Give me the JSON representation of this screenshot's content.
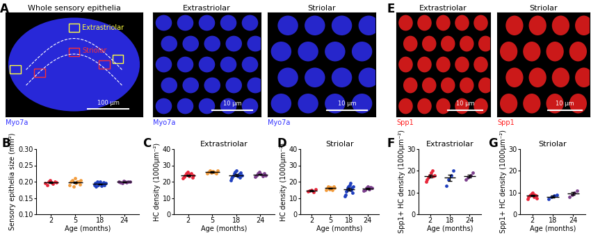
{
  "figures": [
    {
      "panel": "A",
      "images": [
        {
          "kind": "whole",
          "title": "Whole sensory epithelia",
          "stain": "Myo7a",
          "color": "#3030ff",
          "scale_bar": "100 µm",
          "regions": [
            {
              "label": "Extrastriolar",
              "color": "#ffff40"
            },
            {
              "label": "Striolar",
              "color": "#ff3030"
            }
          ]
        },
        {
          "kind": "cells",
          "title": "Extrastriolar",
          "stain": "Myo7a",
          "color": "#3030ff",
          "scale_bar": "10 µm"
        },
        {
          "kind": "cells",
          "title": "Striolar",
          "stain": "Myo7a",
          "color": "#3030ff",
          "scale_bar": "10 µm"
        }
      ]
    },
    {
      "panel": "E",
      "images": [
        {
          "kind": "cells",
          "title": "Extrastriolar",
          "stain": "Spp1",
          "color": "#ff2020",
          "scale_bar": "10 µm"
        },
        {
          "kind": "cells",
          "title": "Striolar",
          "stain": "Spp1",
          "color": "#ff2020",
          "scale_bar": "10 µm"
        }
      ]
    }
  ],
  "chart_data": [
    {
      "panel": "B",
      "type": "scatter",
      "xlabel": "Age (months)",
      "ylabel": "Sensory epithelia size (mm²)",
      "categories": [
        "2",
        "5",
        "18",
        "24"
      ],
      "colors": [
        "#e8263a",
        "#f39c3c",
        "#1f3fbf",
        "#7b3f8c"
      ],
      "values": [
        [
          0.195,
          0.19,
          0.2,
          0.205,
          0.198,
          0.193,
          0.2,
          0.197
        ],
        [
          0.19,
          0.2,
          0.205,
          0.185,
          0.21,
          0.195,
          0.2,
          0.2,
          0.192,
          0.205
        ],
        [
          0.19,
          0.195,
          0.185,
          0.2,
          0.19,
          0.195,
          0.2,
          0.188,
          0.193,
          0.197,
          0.19,
          0.196
        ],
        [
          0.2,
          0.198,
          0.195,
          0.203,
          0.2,
          0.197,
          0.2,
          0.199
        ]
      ],
      "means": [
        0.197,
        0.198,
        0.193,
        0.199
      ],
      "errors": [
        0.002,
        0.003,
        0.0015,
        0.001
      ],
      "ylim": [
        0.1,
        0.3
      ],
      "yticks": [
        {
          "value": 0.1,
          "label": "0.10"
        },
        {
          "value": 0.15,
          "label": "0.15"
        },
        {
          "value": 0.2,
          "label": "0.20"
        },
        {
          "value": 0.25,
          "label": "0.25"
        },
        {
          "value": 0.3,
          "label": "0.30"
        }
      ]
    },
    {
      "panel": "C",
      "type": "scatter",
      "title": "Extrastriolar",
      "xlabel": "Age (months)",
      "ylabel": "HC density (1000µm⁻²)",
      "categories": [
        "2",
        "5",
        "18",
        "24"
      ],
      "colors": [
        "#e8263a",
        "#f39c3c",
        "#1f3fbf",
        "#7b3f8c"
      ],
      "values": [
        [
          22,
          23,
          24,
          25,
          26,
          23.5,
          24.5,
          25,
          22.5,
          24
        ],
        [
          25,
          26,
          27,
          25.5,
          26.5,
          26,
          25,
          27
        ],
        [
          21,
          22,
          23,
          24,
          25,
          26,
          27,
          24,
          23.5,
          24.5,
          22.5,
          25.5,
          24
        ],
        [
          23,
          24,
          25,
          26,
          24.5,
          23.5,
          25,
          24
        ]
      ],
      "means": [
        24,
        26,
        24,
        24.4
      ],
      "errors": [
        0.4,
        0.3,
        0.5,
        0.35
      ],
      "ylim": [
        0,
        40
      ],
      "yticks": [
        0,
        10,
        20,
        30,
        40
      ]
    },
    {
      "panel": "D",
      "type": "scatter",
      "title": "Striolar",
      "xlabel": "Age (months)",
      "ylabel": "HC density (1000µm⁻²)",
      "categories": [
        "2",
        "5",
        "18",
        "24"
      ],
      "colors": [
        "#e8263a",
        "#f39c3c",
        "#1f3fbf",
        "#7b3f8c"
      ],
      "values": [
        [
          14,
          14.5,
          15,
          13.5,
          15.5
        ],
        [
          15,
          16,
          17,
          15.5,
          16.5,
          16,
          15,
          17,
          16
        ],
        [
          11,
          12,
          14,
          15,
          16,
          17,
          18,
          19,
          15,
          16,
          13,
          17
        ],
        [
          14.5,
          15,
          16,
          17,
          15.5,
          16.5,
          16
        ]
      ],
      "means": [
        14.5,
        16,
        15.3,
        15.8
      ],
      "errors": [
        0.35,
        0.25,
        0.7,
        0.3
      ],
      "ylim": [
        0,
        40
      ],
      "yticks": [
        0,
        10,
        20,
        30,
        40
      ]
    },
    {
      "panel": "F",
      "type": "scatter",
      "title": "Extrastriolar",
      "xlabel": "Age (months)",
      "ylabel": "Spp1+ HC density (1000µm⁻²)",
      "categories": [
        "2",
        "18",
        "24"
      ],
      "colors": [
        "#e8263a",
        "#1f3fbf",
        "#7b3f8c"
      ],
      "values": [
        [
          15,
          16,
          17,
          18,
          19,
          20,
          17.5,
          18
        ],
        [
          13,
          16,
          18,
          20
        ],
        [
          16,
          17,
          18,
          19
        ]
      ],
      "means": [
        17.6,
        16.8,
        17.5
      ],
      "errors": [
        0.6,
        1.5,
        0.6
      ],
      "ylim": [
        0,
        30
      ],
      "yticks": [
        0,
        10,
        20,
        30
      ]
    },
    {
      "panel": "G",
      "type": "scatter",
      "title": "Striolar",
      "xlabel": "Age (months)",
      "ylabel": "Spp1+ HC density (1000µm⁻²)",
      "categories": [
        "2",
        "18",
        "24"
      ],
      "colors": [
        "#e8263a",
        "#1f3fbf",
        "#7b3f8c"
      ],
      "values": [
        [
          7,
          8,
          8.5,
          9,
          9.5,
          10,
          8,
          9,
          8.5,
          7.5
        ],
        [
          7,
          8,
          8.5,
          9
        ],
        [
          8,
          9,
          10,
          11
        ]
      ],
      "means": [
        8.5,
        8.1,
        9.5
      ],
      "errors": [
        0.3,
        0.4,
        0.6
      ],
      "ylim": [
        0,
        30
      ],
      "yticks": [
        0,
        10,
        20,
        30
      ]
    }
  ]
}
